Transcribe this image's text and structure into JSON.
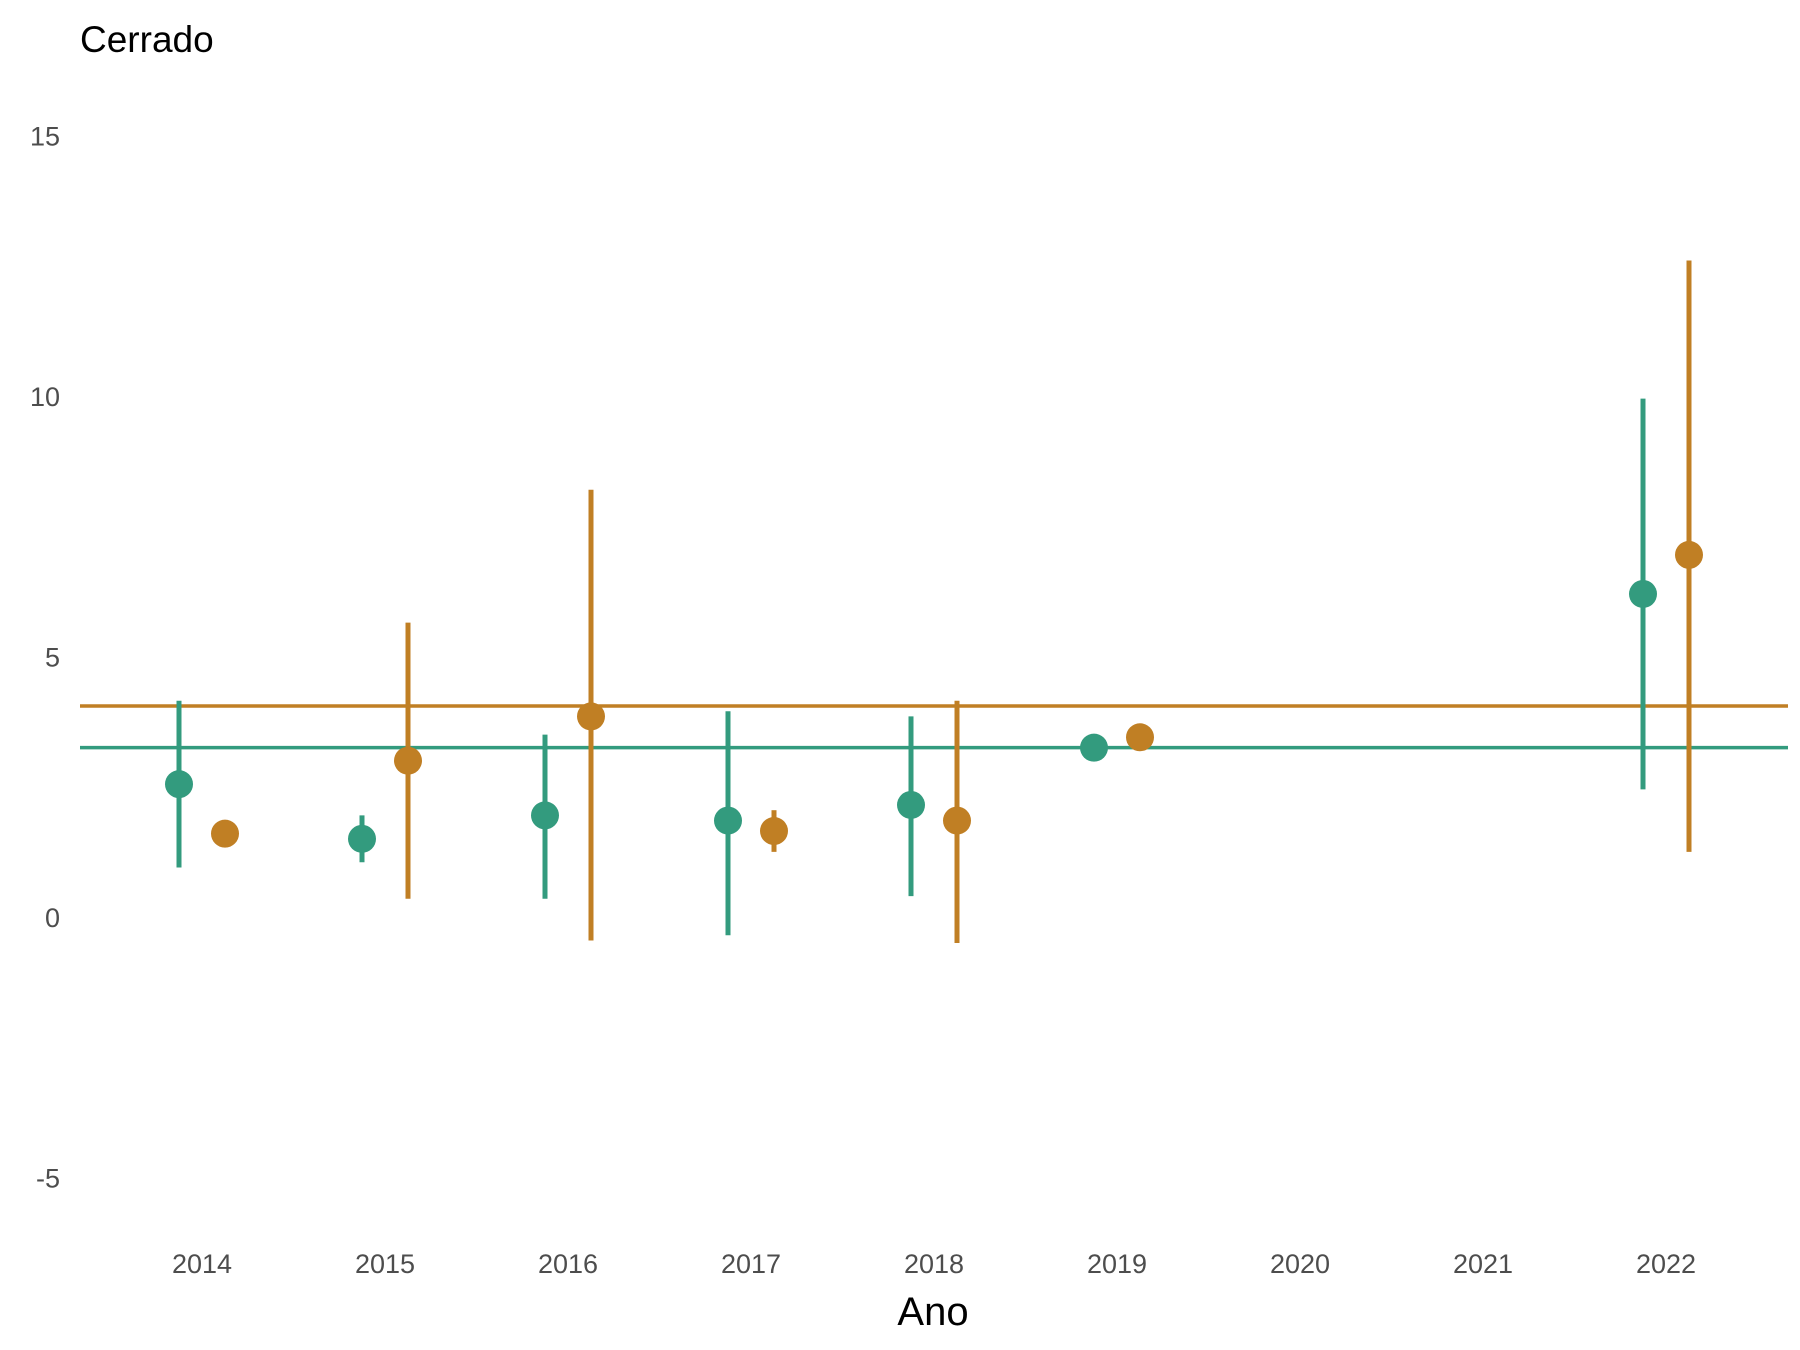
{
  "chart_data": {
    "type": "scatter",
    "title": "Cerrado",
    "xlabel": "Ano",
    "ylabel": "",
    "categories": [
      "2014",
      "2015",
      "2016",
      "2017",
      "2018",
      "2019",
      "2020",
      "2021",
      "2022"
    ],
    "ylim": [
      -6.2,
      16.5
    ],
    "yticks": [
      -5,
      0,
      5,
      10,
      15
    ],
    "ytick_labels": [
      "-5",
      "0",
      "5",
      "10",
      "15"
    ],
    "grid": false,
    "legend": "none",
    "colors": [
      "#339b7e",
      "#c07f24"
    ],
    "series": [
      {
        "color": "#339b7e",
        "reference_line": 3.25,
        "points": [
          {
            "x": "2014",
            "y": 2.55,
            "low": 0.95,
            "high": 4.15
          },
          {
            "x": "2015",
            "y": 1.5,
            "low": 1.05,
            "high": 1.95
          },
          {
            "x": "2016",
            "y": 1.95,
            "low": 0.35,
            "high": 3.5
          },
          {
            "x": "2017",
            "y": 1.85,
            "low": -0.35,
            "high": 3.95
          },
          {
            "x": "2018",
            "y": 2.15,
            "low": 0.4,
            "high": 3.85
          },
          {
            "x": "2019",
            "y": 3.25,
            "low": 3.25,
            "high": 3.25
          },
          {
            "x": "2022",
            "y": 6.2,
            "low": 2.45,
            "high": 9.95
          }
        ]
      },
      {
        "color": "#c07f24",
        "reference_line": 4.05,
        "points": [
          {
            "x": "2014",
            "y": 1.6,
            "low": 1.6,
            "high": 1.6
          },
          {
            "x": "2015",
            "y": 3.0,
            "low": 0.35,
            "high": 5.65
          },
          {
            "x": "2016",
            "y": 3.85,
            "low": -0.45,
            "high": 8.2
          },
          {
            "x": "2017",
            "y": 1.65,
            "low": 1.25,
            "high": 2.05
          },
          {
            "x": "2018",
            "y": 1.85,
            "low": -0.5,
            "high": 4.15
          },
          {
            "x": "2019",
            "y": 3.45,
            "low": 3.45,
            "high": 3.45
          },
          {
            "x": "2022",
            "y": 6.95,
            "low": 1.25,
            "high": 12.6
          }
        ]
      }
    ]
  }
}
